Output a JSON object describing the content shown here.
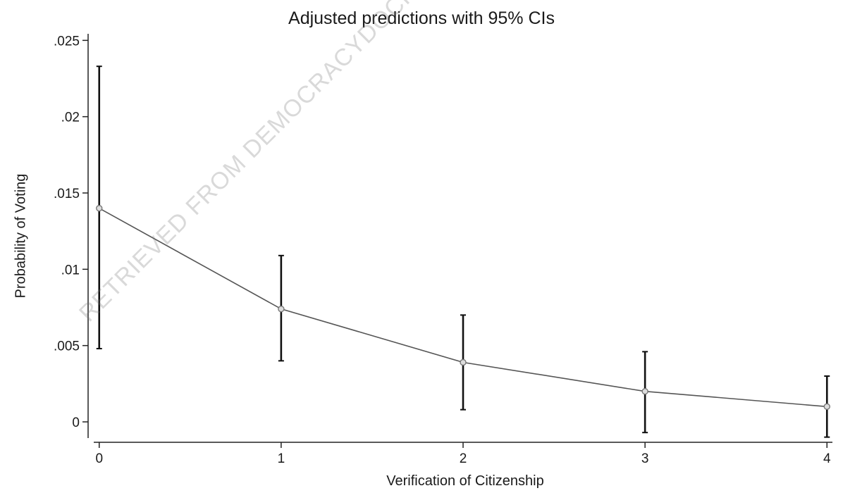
{
  "chart_data": {
    "type": "line",
    "title": "Adjusted predictions with 95% CIs",
    "xlabel": "Verification of Citizenship",
    "ylabel": "Probability of Voting",
    "x": [
      0,
      1,
      2,
      3,
      4
    ],
    "xticks": [
      "0",
      "1",
      "2",
      "3",
      "4"
    ],
    "yticks": [
      "0",
      ".005",
      ".01",
      ".015",
      ".02",
      ".025"
    ],
    "ytick_values": [
      0,
      0.005,
      0.01,
      0.015,
      0.02,
      0.025
    ],
    "xlim": [
      -0.03,
      4.03
    ],
    "ylim": [
      -0.0012,
      0.0258
    ],
    "series": [
      {
        "values": [
          0.014,
          0.0074,
          0.0039,
          0.002,
          0.001
        ],
        "ci_lower": [
          0.0048,
          0.004,
          0.0008,
          -0.0007,
          -0.001
        ],
        "ci_upper": [
          0.0233,
          0.0109,
          0.007,
          0.0046,
          0.003
        ]
      }
    ],
    "grid": false,
    "legend": "none"
  },
  "watermark": "RETRIEVED FROM DEMOCRACYDOCKET.COM",
  "colors": {
    "line": "#555555",
    "errorbar": "#111111",
    "axis": "#222222",
    "marker": "#777777"
  }
}
